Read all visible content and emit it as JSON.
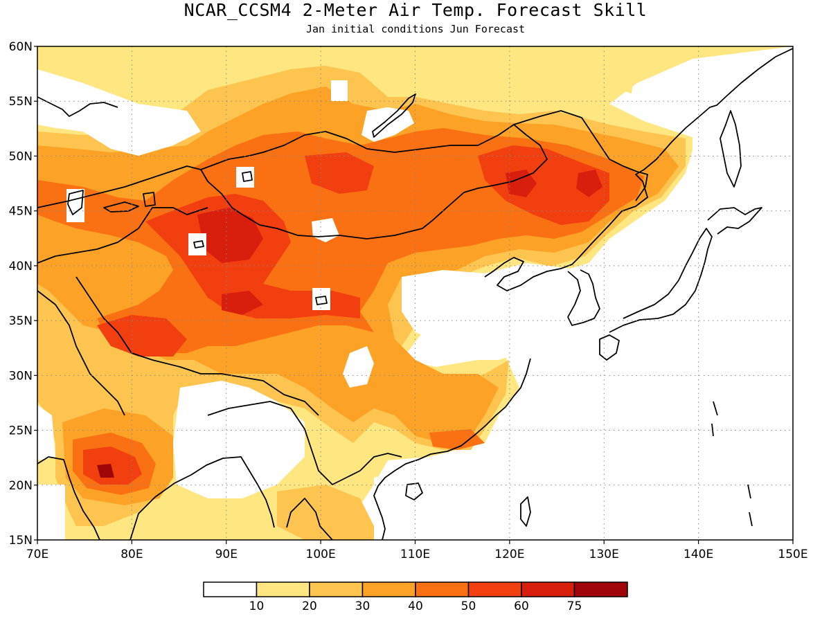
{
  "title": "NCAR_CCSM4 2-Meter Air Temp. Forecast Skill",
  "subtitle": "Jan initial conditions  Jun Forecast",
  "map": {
    "lon_range": [
      70,
      150
    ],
    "lat_range": [
      15,
      60
    ],
    "lon_ticks": [
      {
        "value": 70,
        "label": "70E"
      },
      {
        "value": 80,
        "label": "80E"
      },
      {
        "value": 90,
        "label": "90E"
      },
      {
        "value": 100,
        "label": "100E"
      },
      {
        "value": 110,
        "label": "110E"
      },
      {
        "value": 120,
        "label": "120E"
      },
      {
        "value": 130,
        "label": "130E"
      },
      {
        "value": 140,
        "label": "140E"
      },
      {
        "value": 150,
        "label": "150E"
      }
    ],
    "lat_ticks": [
      {
        "value": 15,
        "label": "15N"
      },
      {
        "value": 20,
        "label": "20N"
      },
      {
        "value": 25,
        "label": "25N"
      },
      {
        "value": 30,
        "label": "30N"
      },
      {
        "value": 35,
        "label": "35N"
      },
      {
        "value": 40,
        "label": "40N"
      },
      {
        "value": 45,
        "label": "45N"
      },
      {
        "value": 50,
        "label": "50N"
      },
      {
        "value": 55,
        "label": "55N"
      },
      {
        "value": 60,
        "label": "60N"
      }
    ]
  },
  "legend": {
    "levels": [
      "10",
      "20",
      "30",
      "40",
      "50",
      "60",
      "75"
    ],
    "colors": [
      "#ffffff",
      "#fee681",
      "#fdc450",
      "#fca227",
      "#fa7113",
      "#f23f10",
      "#d81f0e",
      "#a0050a"
    ]
  }
}
